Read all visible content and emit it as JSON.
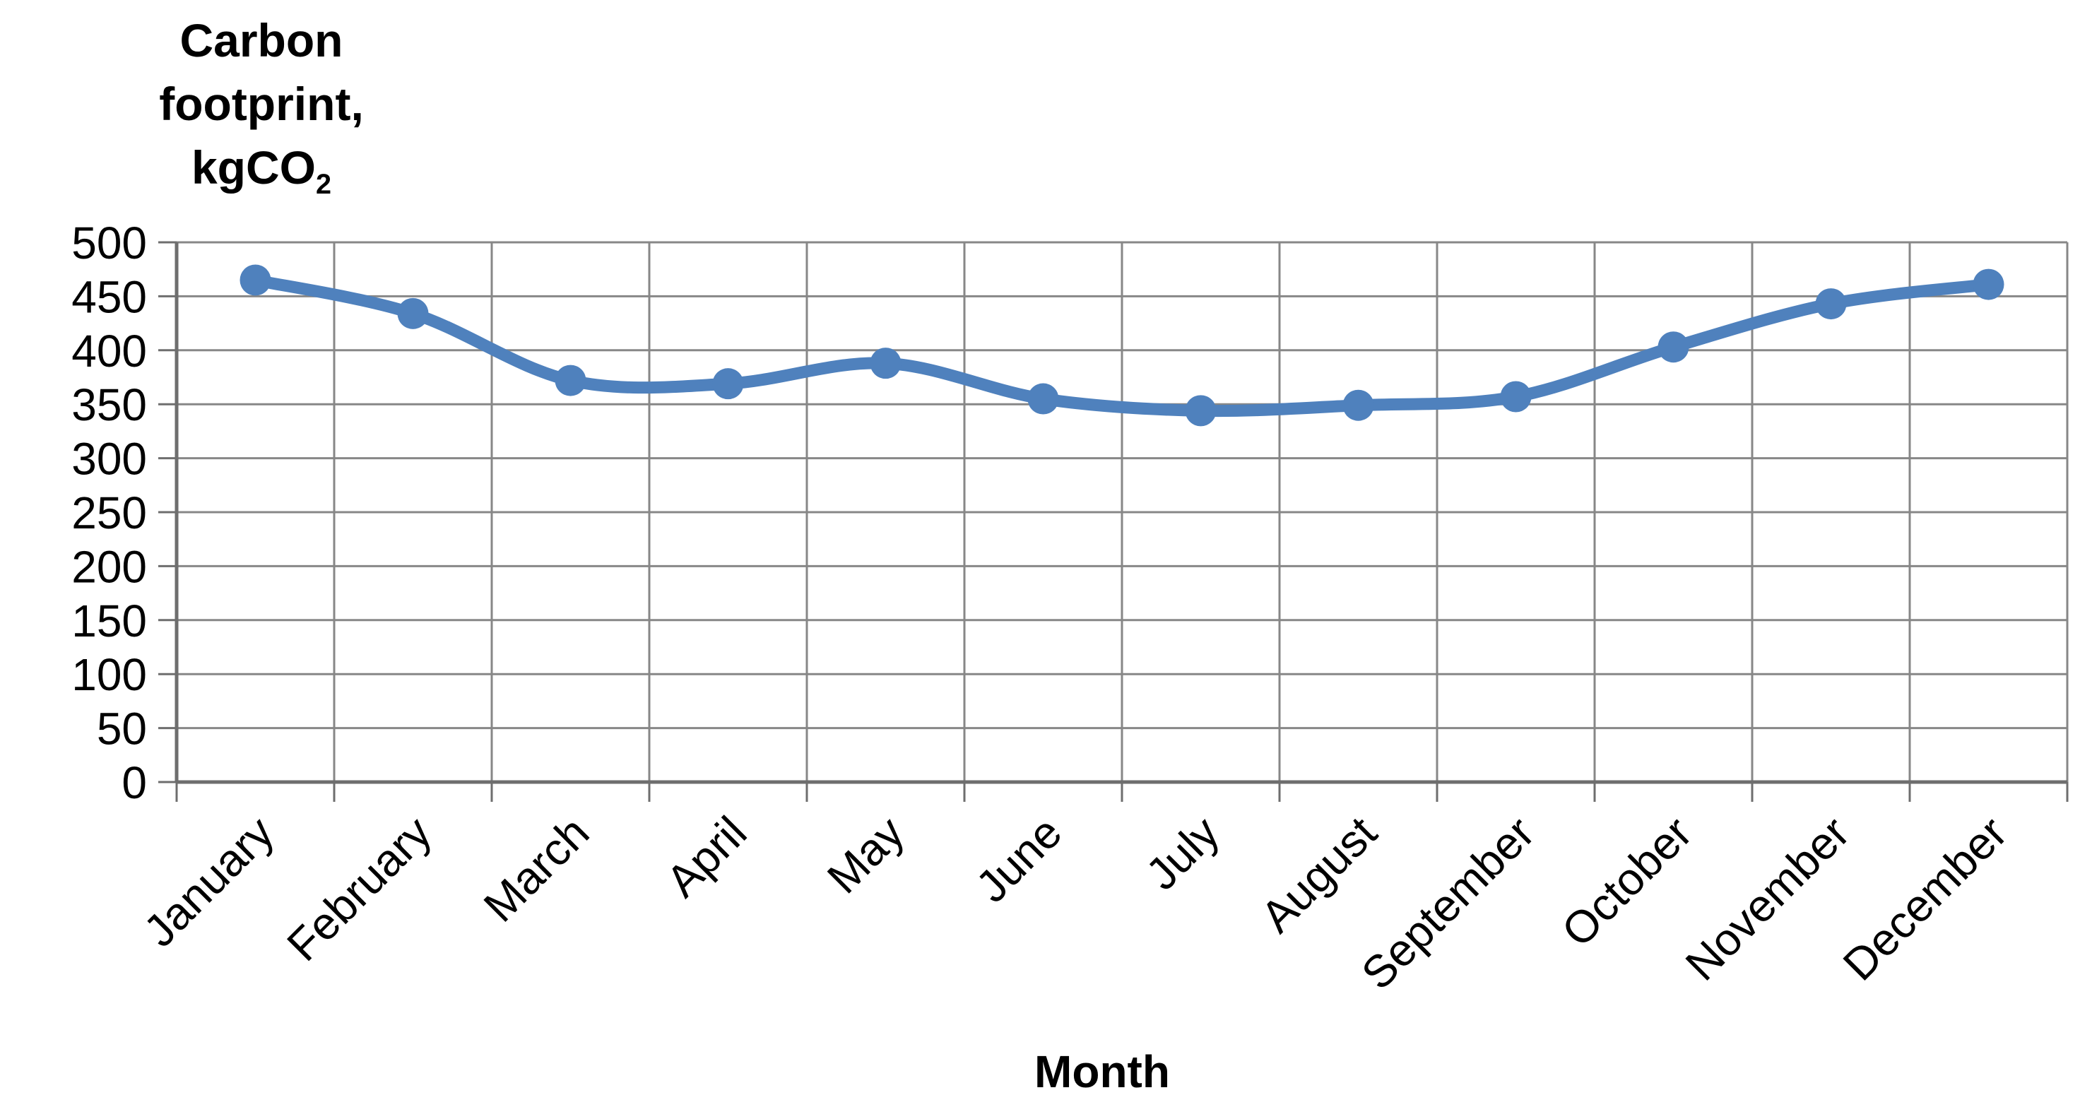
{
  "chart_data": {
    "type": "line",
    "y_axis_title_lines": [
      "Carbon",
      "footprint,"
    ],
    "y_axis_unit_main": "kgCO",
    "y_axis_unit_sub": "2",
    "x_axis_title": "Month",
    "categories": [
      "January",
      "February",
      "March",
      "April",
      "May",
      "June",
      "July",
      "August",
      "September",
      "October",
      "November",
      "December"
    ],
    "series": [
      {
        "name": "Carbon footprint",
        "values": [
          465,
          434,
          372,
          369,
          388,
          355,
          344,
          349,
          357,
          403,
          443,
          461
        ]
      }
    ],
    "ylim": [
      0,
      500
    ],
    "ytick_step": 50,
    "y_tick_labels": [
      "0",
      "50",
      "100",
      "150",
      "200",
      "250",
      "300",
      "350",
      "400",
      "450",
      "500"
    ],
    "grid": true,
    "legend": "none",
    "smooth_line": true,
    "marker": "circle",
    "colors": {
      "series_line": "#4F81BD",
      "marker_fill": "#4F81BD",
      "gridline": "#878787",
      "axis_line": "#6E6E6E",
      "text": "#000000",
      "background": "#FFFFFF"
    }
  }
}
